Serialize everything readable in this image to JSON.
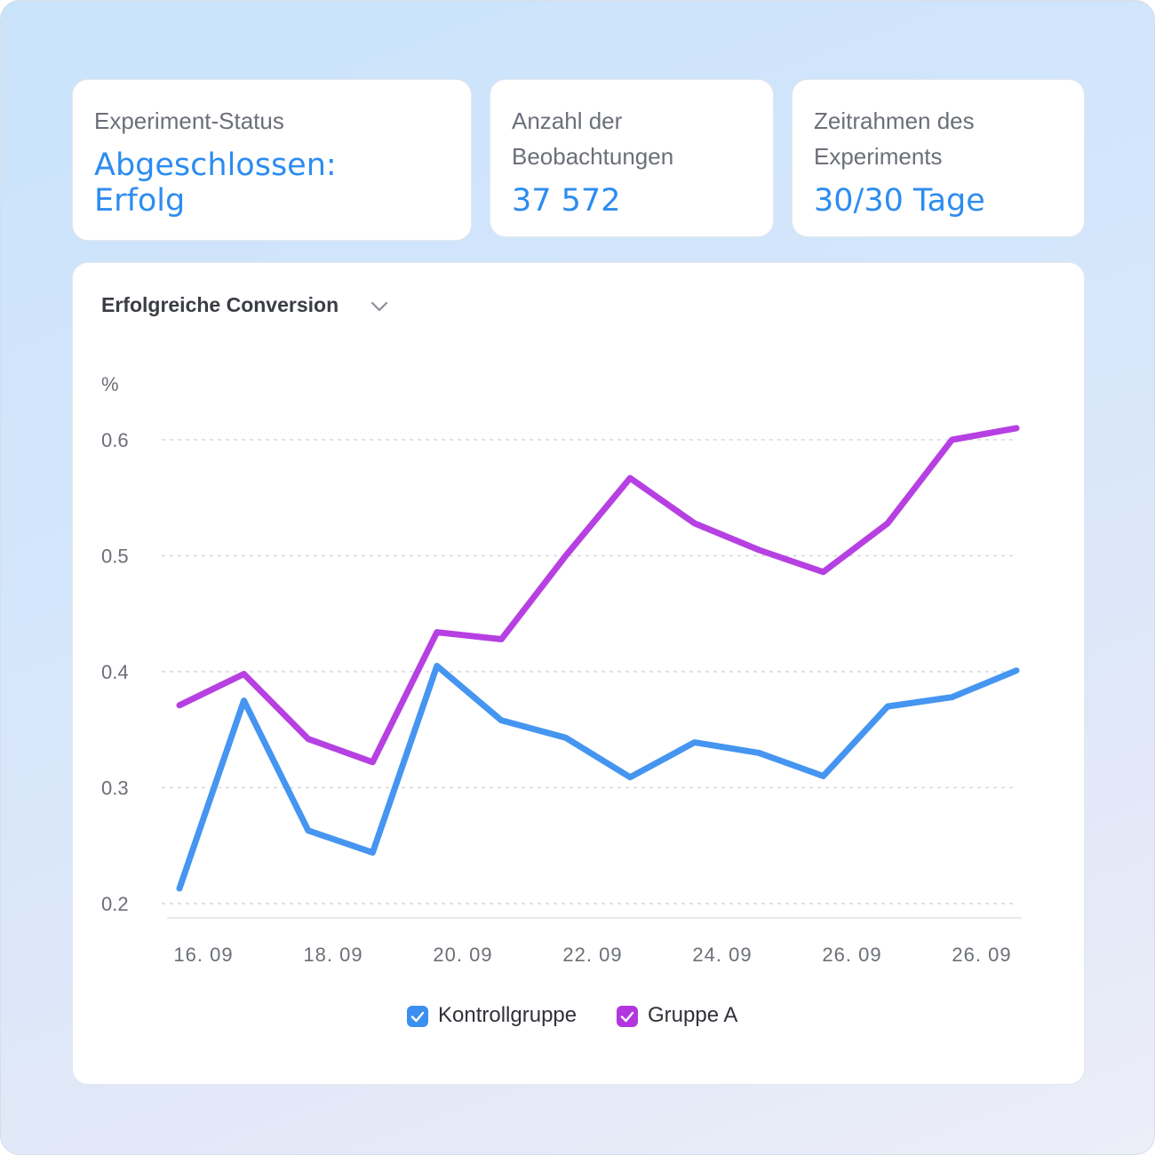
{
  "cards": {
    "status": {
      "label": "Experiment-Status",
      "value_line1": "Abgeschlossen:",
      "value_line2": "Erfolg"
    },
    "observations": {
      "label_line1": "Anzahl der",
      "label_line2": "Beobachtungen",
      "value": "37 572"
    },
    "timeframe": {
      "label_line1": "Zeitrahmen des",
      "label_line2": "Experiments",
      "value": "30/30 Tage"
    }
  },
  "chart": {
    "title": "Erfolgreiche Conversion",
    "dropdown_icon": "chevron-down-icon"
  },
  "colors": {
    "accent": "#2d8cf0",
    "series_control": "#3b8ff0",
    "series_a": "#b236e0"
  },
  "chart_data": {
    "type": "line",
    "ylabel": "%",
    "xlabel": "",
    "ylim": [
      0.2,
      0.6
    ],
    "yticks": [
      "0.2",
      "0.3",
      "0.4",
      "0.5",
      "0.6"
    ],
    "xtick_labels": [
      "16. 09",
      "18. 09",
      "20. 09",
      "22. 09",
      "24. 09",
      "26. 09",
      "26. 09"
    ],
    "grid": true,
    "legend_position": "bottom-center",
    "series": [
      {
        "name": "Kontrollgruppe",
        "color": "#3b8ff0",
        "values": [
          0.213,
          0.375,
          0.263,
          0.244,
          0.405,
          0.358,
          0.343,
          0.309,
          0.339,
          0.33,
          0.31,
          0.37,
          0.378,
          0.401
        ]
      },
      {
        "name": "Gruppe A",
        "color": "#b236e0",
        "values": [
          0.371,
          0.398,
          0.342,
          0.322,
          0.434,
          0.428,
          0.5,
          0.567,
          0.528,
          0.505,
          0.486,
          0.528,
          0.6,
          0.61
        ]
      }
    ]
  }
}
